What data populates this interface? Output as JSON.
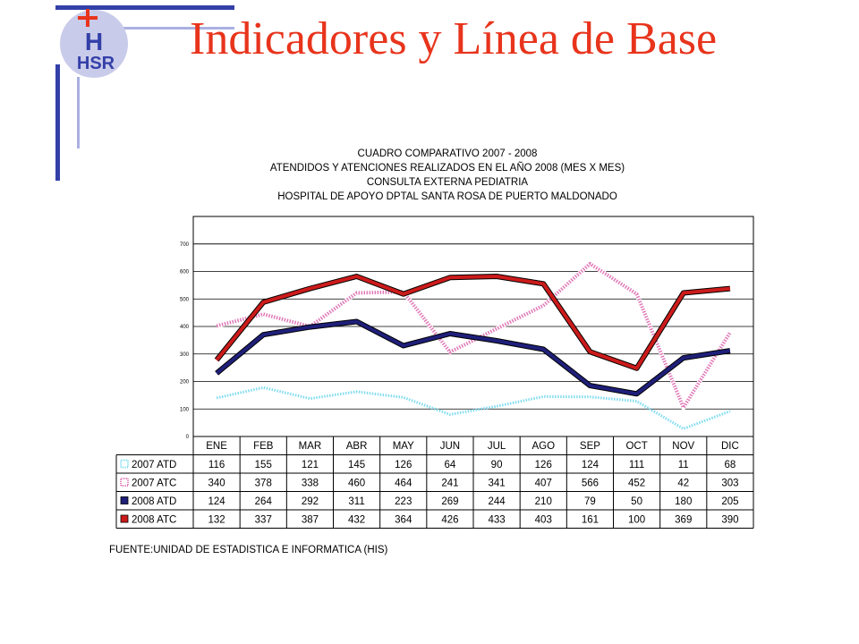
{
  "slide": {
    "title": "Indicadores y Línea de Base",
    "title_color": "#e8341c",
    "accent_color": "#3340a8",
    "logo_text": "HSR"
  },
  "chart_data": {
    "type": "line",
    "title_lines": [
      "CUADRO COMPARATIVO 2007 - 2008",
      "ATENDIDOS Y ATENCIONES  REALIZADOS EN  EL AÑO 2008 (MES X MES)",
      "CONSULTA EXTERNA PEDIATRIA",
      "HOSPITAL DE APOYO DPTAL SANTA ROSA DE PUERTO MALDONADO"
    ],
    "categories": [
      "ENE",
      "FEB",
      "MAR",
      "ABR",
      "MAY",
      "JUN",
      "JUL",
      "AGO",
      "SEP",
      "OCT",
      "NOV",
      "DIC"
    ],
    "yticks": [
      "0",
      "100",
      "200",
      "300",
      "400",
      "500",
      "600",
      "700"
    ],
    "ylim": [
      0,
      800
    ],
    "grid": true,
    "legend": "data-table",
    "series": [
      {
        "name": "2007 ATD",
        "color": "#7fdcf0",
        "style": "dotted-light",
        "values": [
          116,
          155,
          121,
          145,
          126,
          64,
          90,
          126,
          124,
          111,
          11,
          68
        ],
        "plotted": [
          140,
          178,
          138,
          163,
          142,
          80,
          110,
          145,
          144,
          128,
          28,
          92
        ]
      },
      {
        "name": "2007 ATC",
        "color": "#e07ab8",
        "style": "dotted",
        "values": [
          340,
          378,
          338,
          460,
          464,
          241,
          341,
          407,
          566,
          452,
          42,
          303
        ],
        "plotted": [
          402,
          445,
          400,
          522,
          526,
          307,
          392,
          476,
          628,
          518,
          105,
          378
        ]
      },
      {
        "name": "2008 ATD",
        "color": "#1f1f7a",
        "style": "solid",
        "values": [
          124,
          264,
          292,
          311,
          223,
          269,
          244,
          210,
          79,
          50,
          180,
          205
        ],
        "plotted": [
          230,
          370,
          398,
          418,
          330,
          374,
          348,
          317,
          185,
          155,
          286,
          312
        ]
      },
      {
        "name": "2008 ATC",
        "color": "#cc1b1b",
        "style": "solid",
        "values": [
          132,
          337,
          387,
          432,
          364,
          426,
          433,
          403,
          161,
          100,
          369,
          390
        ],
        "plotted": [
          278,
          488,
          538,
          582,
          518,
          578,
          582,
          555,
          308,
          248,
          522,
          538
        ]
      }
    ],
    "source": "FUENTE:UNIDAD DE ESTADISTICA E INFORMATICA (HIS)"
  }
}
